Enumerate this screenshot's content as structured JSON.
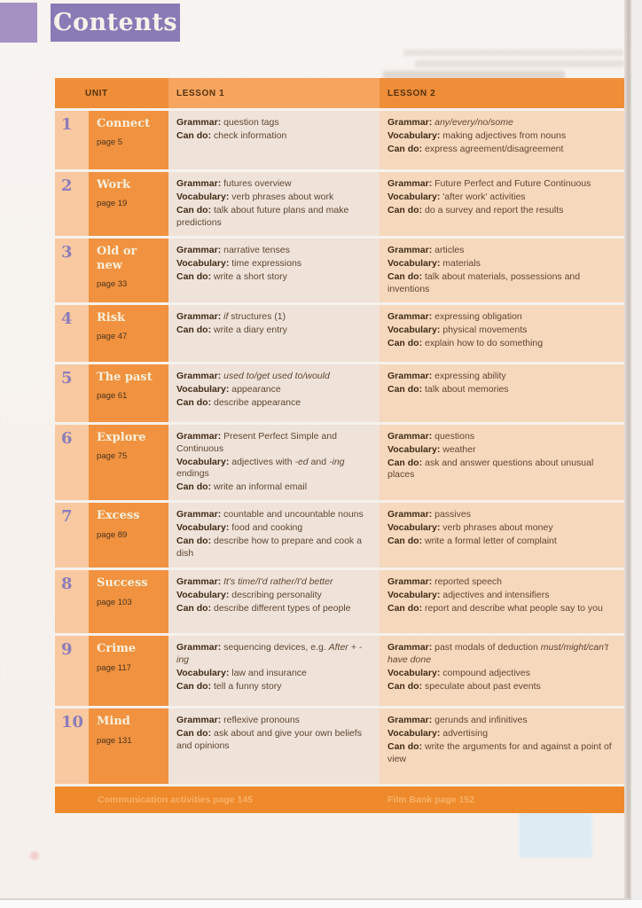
{
  "page_title": "Contents",
  "table": {
    "headers": [
      "UNIT",
      "LESSON 1",
      "LESSON 2"
    ],
    "units": [
      {
        "number": "1",
        "name": "Connect",
        "page_label": "page 5",
        "lesson1": [
          {
            "label": "Grammar:",
            "segments": [
              {
                "t": "question tags",
                "i": false
              }
            ]
          },
          {
            "label": "Can do:",
            "segments": [
              {
                "t": "check information",
                "i": false
              }
            ]
          }
        ],
        "lesson2": [
          {
            "label": "Grammar:",
            "segments": [
              {
                "t": "any/every/no/some",
                "i": true
              }
            ]
          },
          {
            "label": "Vocabulary:",
            "segments": [
              {
                "t": "making adjectives from nouns",
                "i": false
              }
            ]
          },
          {
            "label": "Can do:",
            "segments": [
              {
                "t": "express agreement/disagreement",
                "i": false
              }
            ]
          }
        ]
      },
      {
        "number": "2",
        "name": "Work",
        "page_label": "page 19",
        "lesson1": [
          {
            "label": "Grammar:",
            "segments": [
              {
                "t": "futures overview",
                "i": false
              }
            ]
          },
          {
            "label": "Vocabulary:",
            "segments": [
              {
                "t": "verb phrases about work",
                "i": false
              }
            ]
          },
          {
            "label": "Can do:",
            "segments": [
              {
                "t": "talk about future plans and make predictions",
                "i": false
              }
            ]
          }
        ],
        "lesson2": [
          {
            "label": "Grammar:",
            "segments": [
              {
                "t": "Future Perfect and Future Continuous",
                "i": false
              }
            ]
          },
          {
            "label": "Vocabulary:",
            "segments": [
              {
                "t": "'after work' activities",
                "i": false
              }
            ]
          },
          {
            "label": "Can do:",
            "segments": [
              {
                "t": "do a survey and report the results",
                "i": false
              }
            ]
          }
        ]
      },
      {
        "number": "3",
        "name": "Old or new",
        "page_label": "page 33",
        "lesson1": [
          {
            "label": "Grammar:",
            "segments": [
              {
                "t": "narrative tenses",
                "i": false
              }
            ]
          },
          {
            "label": "Vocabulary:",
            "segments": [
              {
                "t": "time expressions",
                "i": false
              }
            ]
          },
          {
            "label": "Can do:",
            "segments": [
              {
                "t": "write a short story",
                "i": false
              }
            ]
          }
        ],
        "lesson2": [
          {
            "label": "Grammar:",
            "segments": [
              {
                "t": "articles",
                "i": false
              }
            ]
          },
          {
            "label": "Vocabulary:",
            "segments": [
              {
                "t": "materials",
                "i": false
              }
            ]
          },
          {
            "label": "Can do:",
            "segments": [
              {
                "t": "talk about materials, possessions and inventions",
                "i": false
              }
            ]
          }
        ]
      },
      {
        "number": "4",
        "name": "Risk",
        "page_label": "page 47",
        "lesson1": [
          {
            "label": "Grammar:",
            "segments": [
              {
                "t": "if",
                "i": true
              },
              {
                "t": " structures (1)",
                "i": false
              }
            ]
          },
          {
            "label": "Can do:",
            "segments": [
              {
                "t": "write a diary entry",
                "i": false
              }
            ]
          }
        ],
        "lesson2": [
          {
            "label": "Grammar:",
            "segments": [
              {
                "t": "expressing obligation",
                "i": false
              }
            ]
          },
          {
            "label": "Vocabulary:",
            "segments": [
              {
                "t": "physical movements",
                "i": false
              }
            ]
          },
          {
            "label": "Can do:",
            "segments": [
              {
                "t": "explain how to do something",
                "i": false
              }
            ]
          }
        ]
      },
      {
        "number": "5",
        "name": "The past",
        "page_label": "page 61",
        "lesson1": [
          {
            "label": "Grammar:",
            "segments": [
              {
                "t": "used to/get used to/would",
                "i": true
              }
            ]
          },
          {
            "label": "Vocabulary:",
            "segments": [
              {
                "t": "appearance",
                "i": false
              }
            ]
          },
          {
            "label": "Can do:",
            "segments": [
              {
                "t": "describe appearance",
                "i": false
              }
            ]
          }
        ],
        "lesson2": [
          {
            "label": "Grammar:",
            "segments": [
              {
                "t": "expressing ability",
                "i": false
              }
            ]
          },
          {
            "label": "Can do:",
            "segments": [
              {
                "t": "talk about memories",
                "i": false
              }
            ]
          }
        ]
      },
      {
        "number": "6",
        "name": "Explore",
        "page_label": "page 75",
        "lesson1": [
          {
            "label": "Grammar:",
            "segments": [
              {
                "t": "Present Perfect Simple and Continuous",
                "i": false
              }
            ]
          },
          {
            "label": "Vocabulary:",
            "segments": [
              {
                "t": "adjectives with ",
                "i": false
              },
              {
                "t": "-ed",
                "i": true
              },
              {
                "t": " and ",
                "i": false
              },
              {
                "t": "-ing",
                "i": true
              },
              {
                "t": " endings",
                "i": false
              }
            ]
          },
          {
            "label": "Can do:",
            "segments": [
              {
                "t": "write an informal email",
                "i": false
              }
            ]
          }
        ],
        "lesson2": [
          {
            "label": "Grammar:",
            "segments": [
              {
                "t": "questions",
                "i": false
              }
            ]
          },
          {
            "label": "Vocabulary:",
            "segments": [
              {
                "t": "weather",
                "i": false
              }
            ]
          },
          {
            "label": "Can do:",
            "segments": [
              {
                "t": "ask and answer questions about unusual places",
                "i": false
              }
            ]
          }
        ]
      },
      {
        "number": "7",
        "name": "Excess",
        "page_label": "page 89",
        "lesson1": [
          {
            "label": "Grammar:",
            "segments": [
              {
                "t": "countable and uncountable nouns",
                "i": false
              }
            ]
          },
          {
            "label": "Vocabulary:",
            "segments": [
              {
                "t": "food and cooking",
                "i": false
              }
            ]
          },
          {
            "label": "Can do:",
            "segments": [
              {
                "t": "describe how to prepare and cook a dish",
                "i": false
              }
            ]
          }
        ],
        "lesson2": [
          {
            "label": "Grammar:",
            "segments": [
              {
                "t": "passives",
                "i": false
              }
            ]
          },
          {
            "label": "Vocabulary:",
            "segments": [
              {
                "t": "verb phrases about money",
                "i": false
              }
            ]
          },
          {
            "label": "Can do:",
            "segments": [
              {
                "t": "write a formal letter of complaint",
                "i": false
              }
            ]
          }
        ]
      },
      {
        "number": "8",
        "name": "Success",
        "page_label": "page 103",
        "lesson1": [
          {
            "label": "Grammar:",
            "segments": [
              {
                "t": "It's time/I'd rather/I'd better",
                "i": true
              }
            ]
          },
          {
            "label": "Vocabulary:",
            "segments": [
              {
                "t": "describing personality",
                "i": false
              }
            ]
          },
          {
            "label": "Can do:",
            "segments": [
              {
                "t": "describe different types of people",
                "i": false
              }
            ]
          }
        ],
        "lesson2": [
          {
            "label": "Grammar:",
            "segments": [
              {
                "t": "reported speech",
                "i": false
              }
            ]
          },
          {
            "label": "Vocabulary:",
            "segments": [
              {
                "t": "adjectives and intensifiers",
                "i": false
              }
            ]
          },
          {
            "label": "Can do:",
            "segments": [
              {
                "t": "report and describe what people say to you",
                "i": false
              }
            ]
          }
        ]
      },
      {
        "number": "9",
        "name": "Crime",
        "page_label": "page 117",
        "lesson1": [
          {
            "label": "Grammar:",
            "segments": [
              {
                "t": "sequencing devices, e.g. ",
                "i": false
              },
              {
                "t": "After + -ing",
                "i": true
              }
            ]
          },
          {
            "label": "Vocabulary:",
            "segments": [
              {
                "t": "law and insurance",
                "i": false
              }
            ]
          },
          {
            "label": "Can do:",
            "segments": [
              {
                "t": "tell a funny story",
                "i": false
              }
            ]
          }
        ],
        "lesson2": [
          {
            "label": "Grammar:",
            "segments": [
              {
                "t": "past modals of deduction ",
                "i": false
              },
              {
                "t": "must/might/can't have done",
                "i": true
              }
            ]
          },
          {
            "label": "Vocabulary:",
            "segments": [
              {
                "t": "compound adjectives",
                "i": false
              }
            ]
          },
          {
            "label": "Can do:",
            "segments": [
              {
                "t": "speculate about past events",
                "i": false
              }
            ]
          }
        ]
      },
      {
        "number": "10",
        "name": "Mind",
        "page_label": "page 131",
        "lesson1": [
          {
            "label": "Grammar:",
            "segments": [
              {
                "t": "reflexive pronouns",
                "i": false
              }
            ]
          },
          {
            "label": "Can do:",
            "segments": [
              {
                "t": "ask about and give your own beliefs and opinions",
                "i": false
              }
            ]
          }
        ],
        "lesson2": [
          {
            "label": "Grammar:",
            "segments": [
              {
                "t": "gerunds and infinitives",
                "i": false
              }
            ]
          },
          {
            "label": "Vocabulary:",
            "segments": [
              {
                "t": "advertising",
                "i": false
              }
            ]
          },
          {
            "label": "Can do:",
            "segments": [
              {
                "t": "write the arguments for and against a point of view",
                "i": false
              }
            ]
          }
        ]
      }
    ],
    "footer": {
      "left": "Communication activities page 145",
      "right": "Film Bank page 152"
    }
  },
  "colors": {
    "accent_purple": "#8a7ab6",
    "light_purple": "#a590c2",
    "header_dark_orange": "#ee8e38",
    "header_light_orange": "#f6a55f",
    "unit_cell_orange": "#f0923f",
    "number_cell_orange": "#f8c9a1",
    "lesson1_bg": "#efe2d9",
    "lesson2_bg": "#f6d8bd",
    "footer_orange": "#ee8a2c",
    "text_dark_brown": "#402c16"
  }
}
